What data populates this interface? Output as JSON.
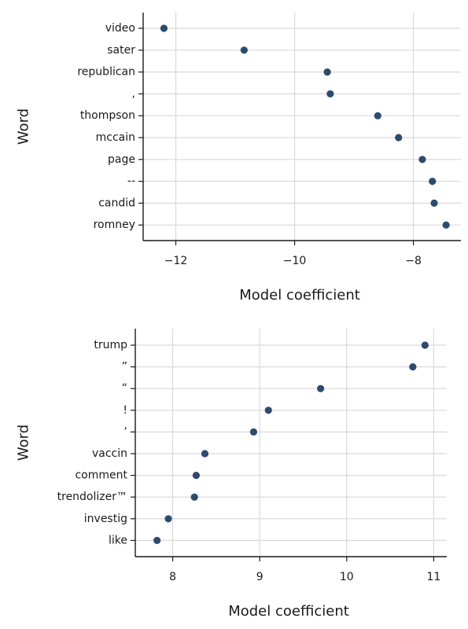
{
  "chart_data": [
    {
      "type": "scatter",
      "title": "",
      "xlabel": "Model coefficient",
      "ylabel": "Word",
      "xlim": [
        -12.55,
        -7.2
      ],
      "xticks": [
        -12,
        -10,
        -8
      ],
      "xtick_labels": [
        "−12",
        "−10",
        "−8"
      ],
      "grid": true,
      "legend": "none",
      "marker_color": "#2e4a70",
      "categories": [
        "video",
        "sater",
        "republican",
        ",",
        "thompson",
        "mccain",
        "page",
        "--",
        "candid",
        "romney"
      ],
      "values": [
        -12.2,
        -10.85,
        -9.45,
        -9.4,
        -8.6,
        -8.25,
        -7.85,
        -7.68,
        -7.65,
        -7.45
      ]
    },
    {
      "type": "scatter",
      "title": "",
      "xlabel": "Model coefficient",
      "ylabel": "Word",
      "xlim": [
        7.57,
        11.15
      ],
      "xticks": [
        8,
        9,
        10,
        11
      ],
      "xtick_labels": [
        "8",
        "9",
        "10",
        "11"
      ],
      "grid": true,
      "legend": "none",
      "marker_color": "#2e4a70",
      "categories": [
        "trump",
        "”",
        "“",
        "!",
        "‘",
        "vaccin",
        "comment",
        "trendolizer™",
        "investig",
        "like"
      ],
      "values": [
        10.9,
        10.76,
        9.7,
        9.1,
        8.93,
        8.37,
        8.27,
        8.25,
        7.95,
        7.82
      ]
    }
  ]
}
